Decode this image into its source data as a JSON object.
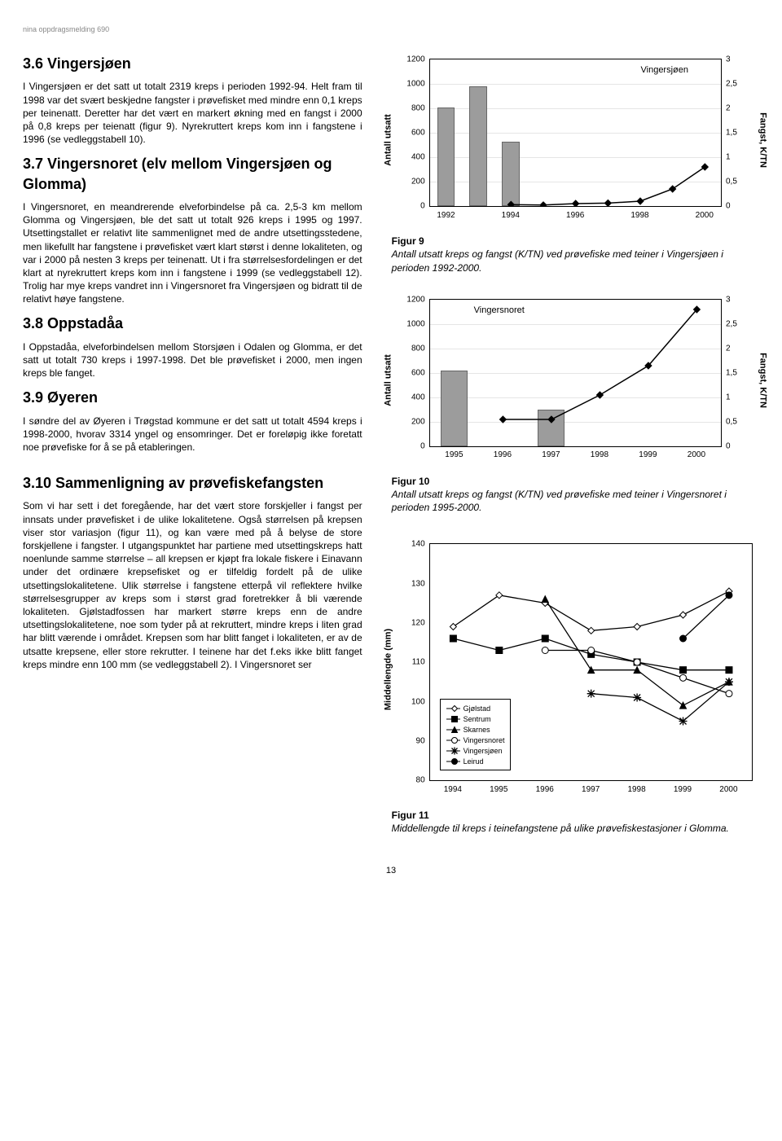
{
  "header": "nina oppdragsmelding 690",
  "page_number": "13",
  "sections": {
    "s36_title": "3.6 Vingersjøen",
    "s36_p": "I Vingersjøen er det satt ut totalt 2319 kreps i perioden 1992-94. Helt fram til 1998 var det svært beskjedne fangster i prøvefisket med mindre enn 0,1 kreps per teinenatt. Deretter har det vært en markert økning med en fangst i 2000 på 0,8 kreps per teienatt (figur 9). Nyrekruttert kreps kom inn i fangstene i 1996 (se vedleggstabell 10).",
    "s37_title": "3.7 Vingersnoret (elv mellom Vingersjøen og Glomma)",
    "s37_p": "I Vingersnoret, en meandrerende elveforbindelse på ca. 2,5-3 km mellom Glomma og Vingersjøen, ble det satt ut totalt 926 kreps i 1995 og 1997. Utsettingstallet er relativt lite sammenlignet med de andre utsettingsstedene, men likefullt har fangstene i prøvefisket vært klart størst i denne lokaliteten, og var i 2000 på nesten 3 kreps per teinenatt. Ut i fra størrelsesfordelingen er det klart at nyrekruttert kreps kom inn i fangstene i 1999 (se vedleggstabell 12). Trolig har mye kreps vandret inn i Vingersnoret fra Vingersjøen og bidratt til de relativt høye fangstene.",
    "s38_title": "3.8 Oppstadåa",
    "s38_p": "I Oppstadåa, elveforbindelsen mellom Storsjøen i Odalen og Glomma, er det satt ut totalt 730 kreps  i 1997-1998. Det ble prøvefisket i 2000, men ingen kreps ble fanget.",
    "s39_title": "3.9 Øyeren",
    "s39_p": "I søndre del av Øyeren i Trøgstad kommune er det satt ut totalt 4594 kreps i 1998-2000, hvorav 3314 yngel og ensomringer. Det er foreløpig ikke foretatt noe prøvefiske for å se på etableringen.",
    "s310_title": "3.10 Sammenligning av prøvefiske­fangsten",
    "s310_p": "Som vi har sett i det foregående, har det vært store forskjeller i fangst per innsats under prøvefisket i de ulike lokalitetene. Også størrelsen på krepsen viser stor variasjon (figur 11), og kan være med på å belyse de store forskjellene i fangster. I utgangspunktet har partiene med utsettingskreps hatt noenlunde samme størrelse – all krepsen er kjøpt fra lokale fiskere i Einavann under det ordinære krepsefisket og er tilfeldig fordelt på de ulike utsettingslokalitetene. Ulik størrelse i fangstene etterpå vil reflektere hvilke størrelsesgrupper av kreps som i størst grad foretrekker å bli værende lokaliteten. Gjølstadfossen har markert større kreps enn de andre utsettingslokalitetene, noe som tyder på at rekruttert, mindre kreps i liten grad har blitt værende i området. Krepsen som har blitt fanget i lokaliteten, er av de utsatte krepsene, eller store rekrutter. I teinene har det f.eks ikke blitt fanget kreps mindre enn 100 mm (se vedleggstabell 2). I Vingersnoret ser"
  },
  "figures": {
    "f9": {
      "title_in": "Vingersjøen",
      "ylabel_left": "Antall utsatt",
      "ylabel_right": "Fangst, K/TN",
      "caption_label": "Figur 9",
      "caption": "Antall utsatt kreps og fangst (K/TN) ved prøvefiske med teiner i Vingersjøen i perioden 1992-2000.",
      "chart": {
        "x_ticks": [
          1992,
          1994,
          1996,
          1998,
          2000
        ],
        "x_min": 1991.5,
        "x_max": 2000.5,
        "yl_min": 0,
        "yl_max": 1200,
        "yl_step": 200,
        "yr_min": 0,
        "yr_max": 3,
        "yr_step": 0.5,
        "bars": [
          {
            "x": 1992,
            "v": 810
          },
          {
            "x": 1993,
            "v": 980
          },
          {
            "x": 1994,
            "v": 530
          }
        ],
        "line": [
          {
            "x": 1994,
            "v": 0.03
          },
          {
            "x": 1995,
            "v": 0.02
          },
          {
            "x": 1996,
            "v": 0.05
          },
          {
            "x": 1997,
            "v": 0.06
          },
          {
            "x": 1998,
            "v": 0.1
          },
          {
            "x": 1999,
            "v": 0.35
          },
          {
            "x": 2000,
            "v": 0.8
          }
        ],
        "bar_color": "#9c9c9c",
        "line_color": "#000000",
        "marker": "diamond"
      }
    },
    "f10": {
      "title_in": "Vingersnoret",
      "ylabel_left": "Antall utsatt",
      "ylabel_right": "Fangst, K/TN",
      "caption_label": "Figur 10",
      "caption": "Antall utsatt kreps og fangst (K/TN) ved prøvefiske med teiner i Vingersnoret i perioden 1995-2000.",
      "chart": {
        "x_ticks": [
          1995,
          1996,
          1997,
          1998,
          1999,
          2000
        ],
        "x_min": 1994.5,
        "x_max": 2000.5,
        "yl_min": 0,
        "yl_max": 1200,
        "yl_step": 200,
        "yr_min": 0,
        "yr_max": 3,
        "yr_step": 0.5,
        "bars": [
          {
            "x": 1995,
            "v": 620
          },
          {
            "x": 1997,
            "v": 300
          }
        ],
        "line": [
          {
            "x": 1996,
            "v": 0.55
          },
          {
            "x": 1997,
            "v": 0.55
          },
          {
            "x": 1998,
            "v": 1.05
          },
          {
            "x": 1999,
            "v": 1.65
          },
          {
            "x": 2000,
            "v": 2.8
          }
        ],
        "bar_color": "#9c9c9c",
        "line_color": "#000000",
        "marker": "diamond"
      }
    },
    "f11": {
      "ylabel_left": "Middellengde (mm)",
      "caption_label": "Figur 11",
      "caption": "Middellengde til kreps i teinefangstene på ulike prøvefiske­stasjoner i Glomma.",
      "chart": {
        "x_ticks": [
          1994,
          1995,
          1996,
          1997,
          1998,
          1999,
          2000
        ],
        "x_min": 1993.5,
        "x_max": 2000.5,
        "y_min": 80,
        "y_max": 140,
        "y_step": 10,
        "series": [
          {
            "name": "Gjølstad",
            "marker": "diamond",
            "fill": "#ffffff",
            "stroke": "#000",
            "points": [
              {
                "x": 1994,
                "v": 119
              },
              {
                "x": 1995,
                "v": 127
              },
              {
                "x": 1996,
                "v": 125
              },
              {
                "x": 1997,
                "v": 118
              },
              {
                "x": 1998,
                "v": 119
              },
              {
                "x": 1999,
                "v": 122
              },
              {
                "x": 2000,
                "v": 128
              }
            ]
          },
          {
            "name": "Sentrum",
            "marker": "square",
            "fill": "#000",
            "stroke": "#000",
            "points": [
              {
                "x": 1994,
                "v": 116
              },
              {
                "x": 1995,
                "v": 113
              },
              {
                "x": 1996,
                "v": 116
              },
              {
                "x": 1997,
                "v": 112
              },
              {
                "x": 1998,
                "v": 110
              },
              {
                "x": 1999,
                "v": 108
              },
              {
                "x": 2000,
                "v": 108
              }
            ]
          },
          {
            "name": "Skarnes",
            "marker": "triangle",
            "fill": "#000",
            "stroke": "#000",
            "points": [
              {
                "x": 1996,
                "v": 126
              },
              {
                "x": 1997,
                "v": 108
              },
              {
                "x": 1998,
                "v": 108
              },
              {
                "x": 1999,
                "v": 99
              },
              {
                "x": 2000,
                "v": 105
              }
            ]
          },
          {
            "name": "Vingersnoret",
            "marker": "circle",
            "fill": "#ffffff",
            "stroke": "#000",
            "points": [
              {
                "x": 1996,
                "v": 113
              },
              {
                "x": 1997,
                "v": 113
              },
              {
                "x": 1998,
                "v": 110
              },
              {
                "x": 1999,
                "v": 106
              },
              {
                "x": 2000,
                "v": 102
              }
            ]
          },
          {
            "name": "Vingersjøen",
            "marker": "star",
            "fill": "#000",
            "stroke": "#000",
            "points": [
              {
                "x": 1997,
                "v": 102
              },
              {
                "x": 1998,
                "v": 101
              },
              {
                "x": 1999,
                "v": 95
              },
              {
                "x": 2000,
                "v": 105
              }
            ]
          },
          {
            "name": "Leirud",
            "marker": "circle",
            "fill": "#000",
            "stroke": "#000",
            "points": [
              {
                "x": 1999,
                "v": 116
              },
              {
                "x": 2000,
                "v": 127
              }
            ]
          }
        ]
      }
    }
  }
}
